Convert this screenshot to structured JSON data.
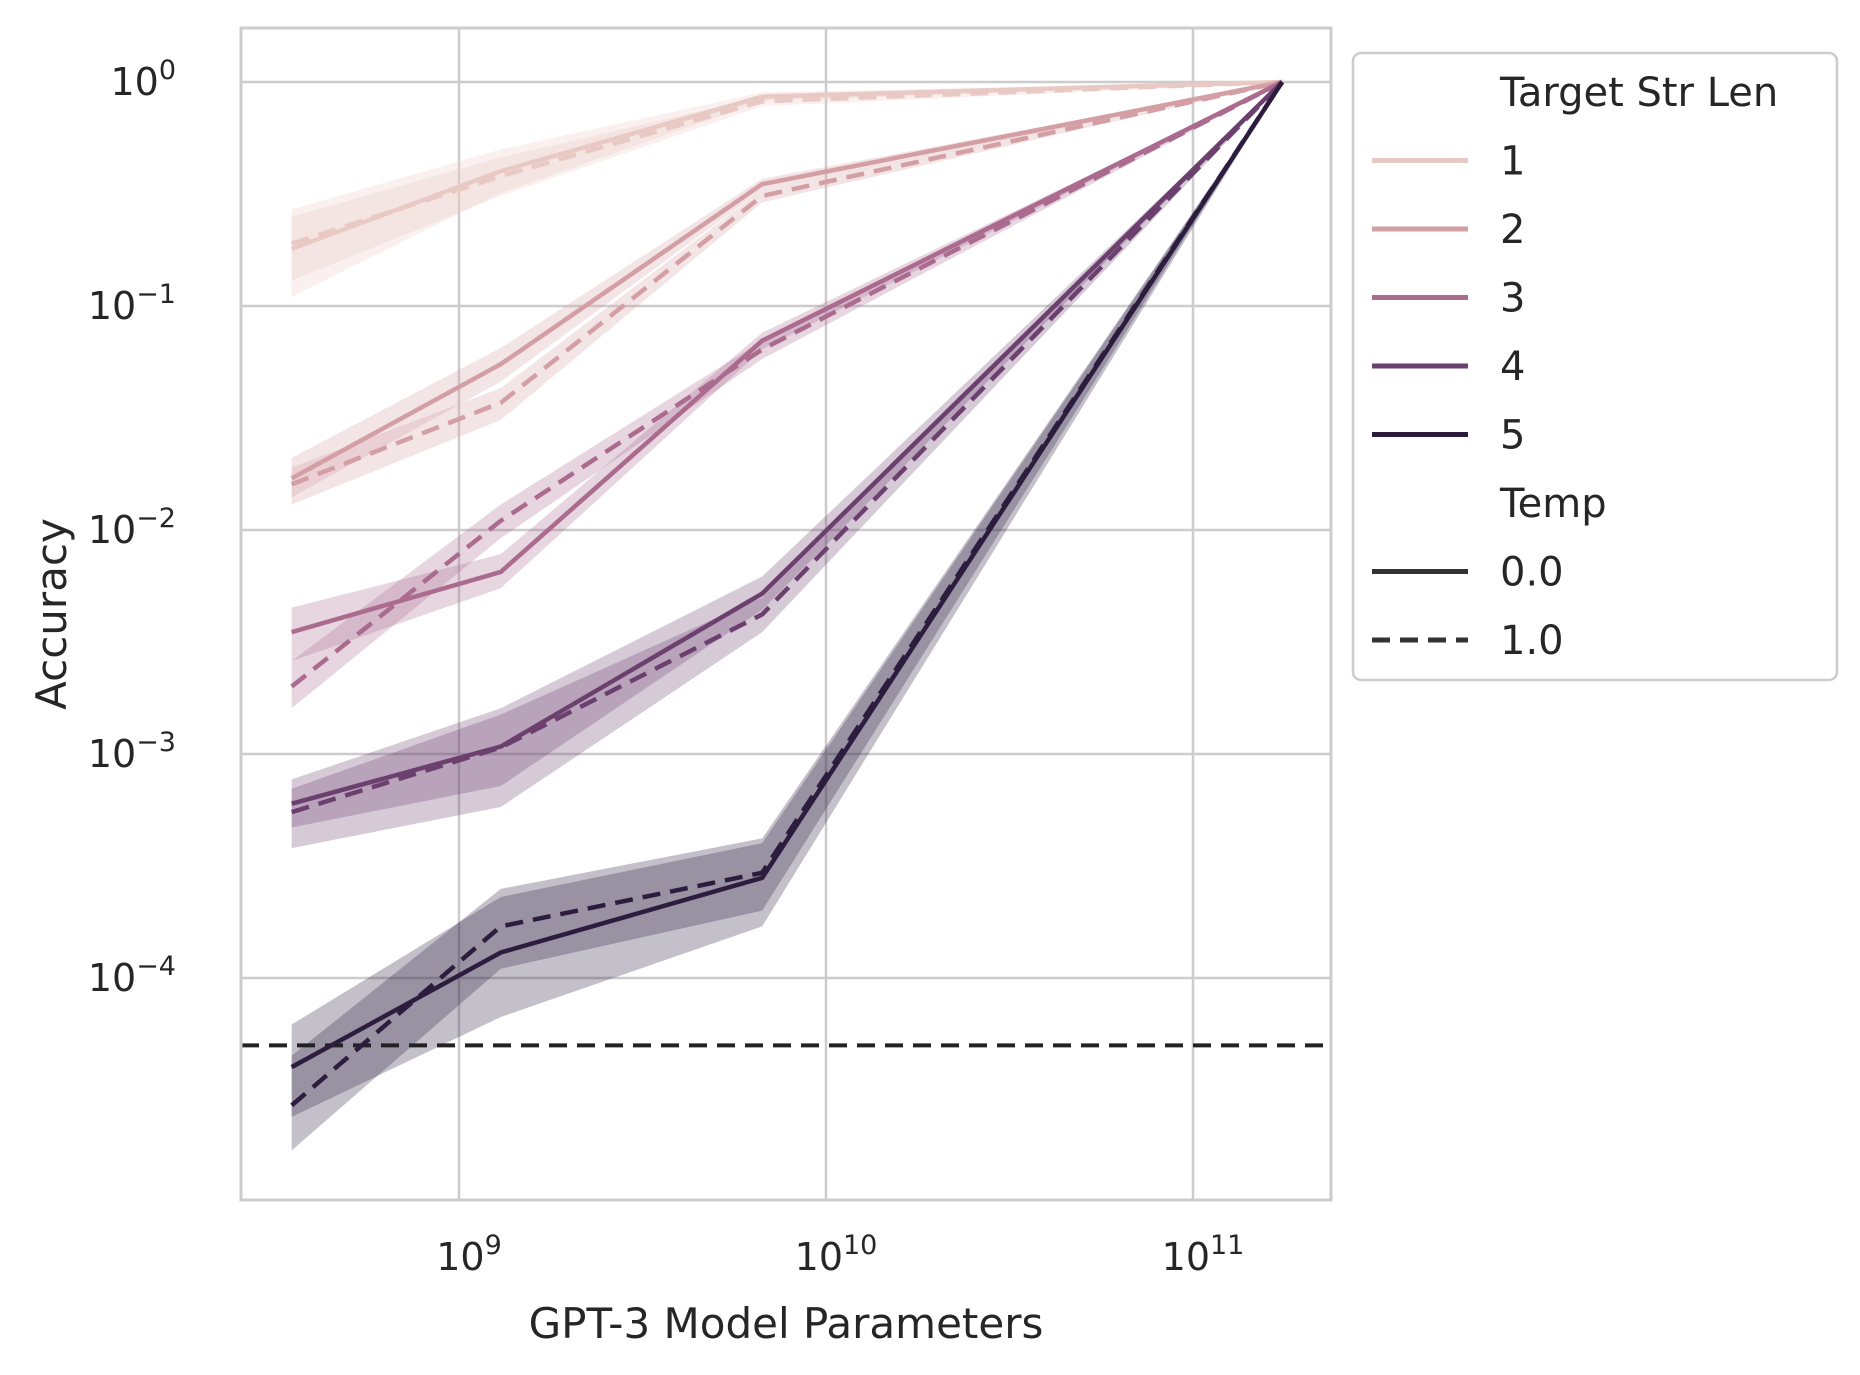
{
  "chart_data": {
    "type": "line",
    "xlabel": "GPT-3 Model Parameters",
    "ylabel": "Accuracy",
    "xscale": "log",
    "yscale": "log",
    "xlim": [
      250000000,
      230000000000
    ],
    "ylim": [
      1e-05,
      1.8
    ],
    "grid": true,
    "x": [
      350000000,
      1300000000,
      6700000000,
      175000000000
    ],
    "xticks": [
      {
        "base": "10",
        "exp": "9",
        "value": 1000000000
      },
      {
        "base": "10",
        "exp": "10",
        "value": 10000000000
      },
      {
        "base": "10",
        "exp": "11",
        "value": 100000000000
      }
    ],
    "yticks": [
      {
        "base": "10",
        "exp": "0",
        "value": 1
      },
      {
        "base": "10",
        "exp": "−1",
        "value": 0.1
      },
      {
        "base": "10",
        "exp": "−2",
        "value": 0.01
      },
      {
        "base": "10",
        "exp": "−3",
        "value": 0.001
      },
      {
        "base": "10",
        "exp": "−4",
        "value": 0.0001
      }
    ],
    "reference_line": {
      "y": 5e-05,
      "style": "dashed",
      "color": "#222222"
    },
    "legend": {
      "placement": "outside upper right",
      "hue_title": "Target Str Len",
      "style_title": "Temp",
      "style_entries": [
        {
          "label": "0.0",
          "dash": "solid"
        },
        {
          "label": "1.0",
          "dash": "dashed"
        }
      ]
    },
    "series": [
      {
        "name": "1",
        "color": "#e8c9c4",
        "temp_0": [
          0.18,
          0.4,
          0.86,
          1.0
        ],
        "temp_0_ci": [
          [
            0.11,
            0.27
          ],
          [
            0.32,
            0.5
          ],
          [
            0.82,
            0.9
          ],
          [
            0.99,
            1.0
          ]
        ],
        "temp_1": [
          0.19,
          0.38,
          0.82,
          1.0
        ],
        "temp_1_ci": [
          [
            0.13,
            0.25
          ],
          [
            0.31,
            0.46
          ],
          [
            0.78,
            0.86
          ],
          [
            0.99,
            1.0
          ]
        ]
      },
      {
        "name": "2",
        "color": "#d39fa5",
        "temp_0": [
          0.017,
          0.055,
          0.35,
          1.0
        ],
        "temp_0_ci": [
          [
            0.014,
            0.021
          ],
          [
            0.046,
            0.065
          ],
          [
            0.33,
            0.37
          ],
          [
            0.99,
            1.0
          ]
        ],
        "temp_1": [
          0.016,
          0.037,
          0.31,
          1.0
        ],
        "temp_1_ci": [
          [
            0.013,
            0.019
          ],
          [
            0.031,
            0.043
          ],
          [
            0.29,
            0.33
          ],
          [
            0.99,
            1.0
          ]
        ]
      },
      {
        "name": "3",
        "color": "#aa6b8e",
        "temp_0": [
          0.0035,
          0.0065,
          0.07,
          1.0
        ],
        "temp_0_ci": [
          [
            0.0026,
            0.0045
          ],
          [
            0.0055,
            0.0078
          ],
          [
            0.064,
            0.076
          ],
          [
            0.99,
            1.0
          ]
        ],
        "temp_1": [
          0.002,
          0.011,
          0.064,
          1.0
        ],
        "temp_1_ci": [
          [
            0.0016,
            0.0026
          ],
          [
            0.0092,
            0.013
          ],
          [
            0.058,
            0.07
          ],
          [
            0.99,
            1.0
          ]
        ]
      },
      {
        "name": "4",
        "color": "#6b3f6e",
        "temp_0": [
          0.0006,
          0.00108,
          0.0052,
          1.0
        ],
        "temp_0_ci": [
          [
            0.00047,
            0.00077
          ],
          [
            0.00072,
            0.0016
          ],
          [
            0.0044,
            0.0062
          ],
          [
            0.99,
            1.0
          ]
        ],
        "temp_1": [
          0.00055,
          0.00107,
          0.0042,
          1.0
        ],
        "temp_1_ci": [
          [
            0.00038,
            0.0007
          ],
          [
            0.00058,
            0.0015
          ],
          [
            0.0035,
            0.005
          ],
          [
            0.99,
            1.0
          ]
        ]
      },
      {
        "name": "5",
        "color": "#2c1d3f",
        "temp_0": [
          4e-05,
          0.00013,
          0.00028,
          1.0
        ],
        "temp_0_ci": [
          [
            2.4e-05,
            6.2e-05
          ],
          [
            6.7e-05,
            0.00023
          ],
          [
            0.00017,
            0.0004
          ],
          [
            0.99,
            1.0
          ]
        ],
        "temp_1": [
          2.7e-05,
          0.00017,
          0.000295,
          1.0
        ],
        "temp_1_ci": [
          [
            1.7e-05,
            4.5e-05
          ],
          [
            0.00011,
            0.00025
          ],
          [
            0.0002,
            0.00042
          ],
          [
            0.99,
            1.0
          ]
        ]
      }
    ]
  }
}
